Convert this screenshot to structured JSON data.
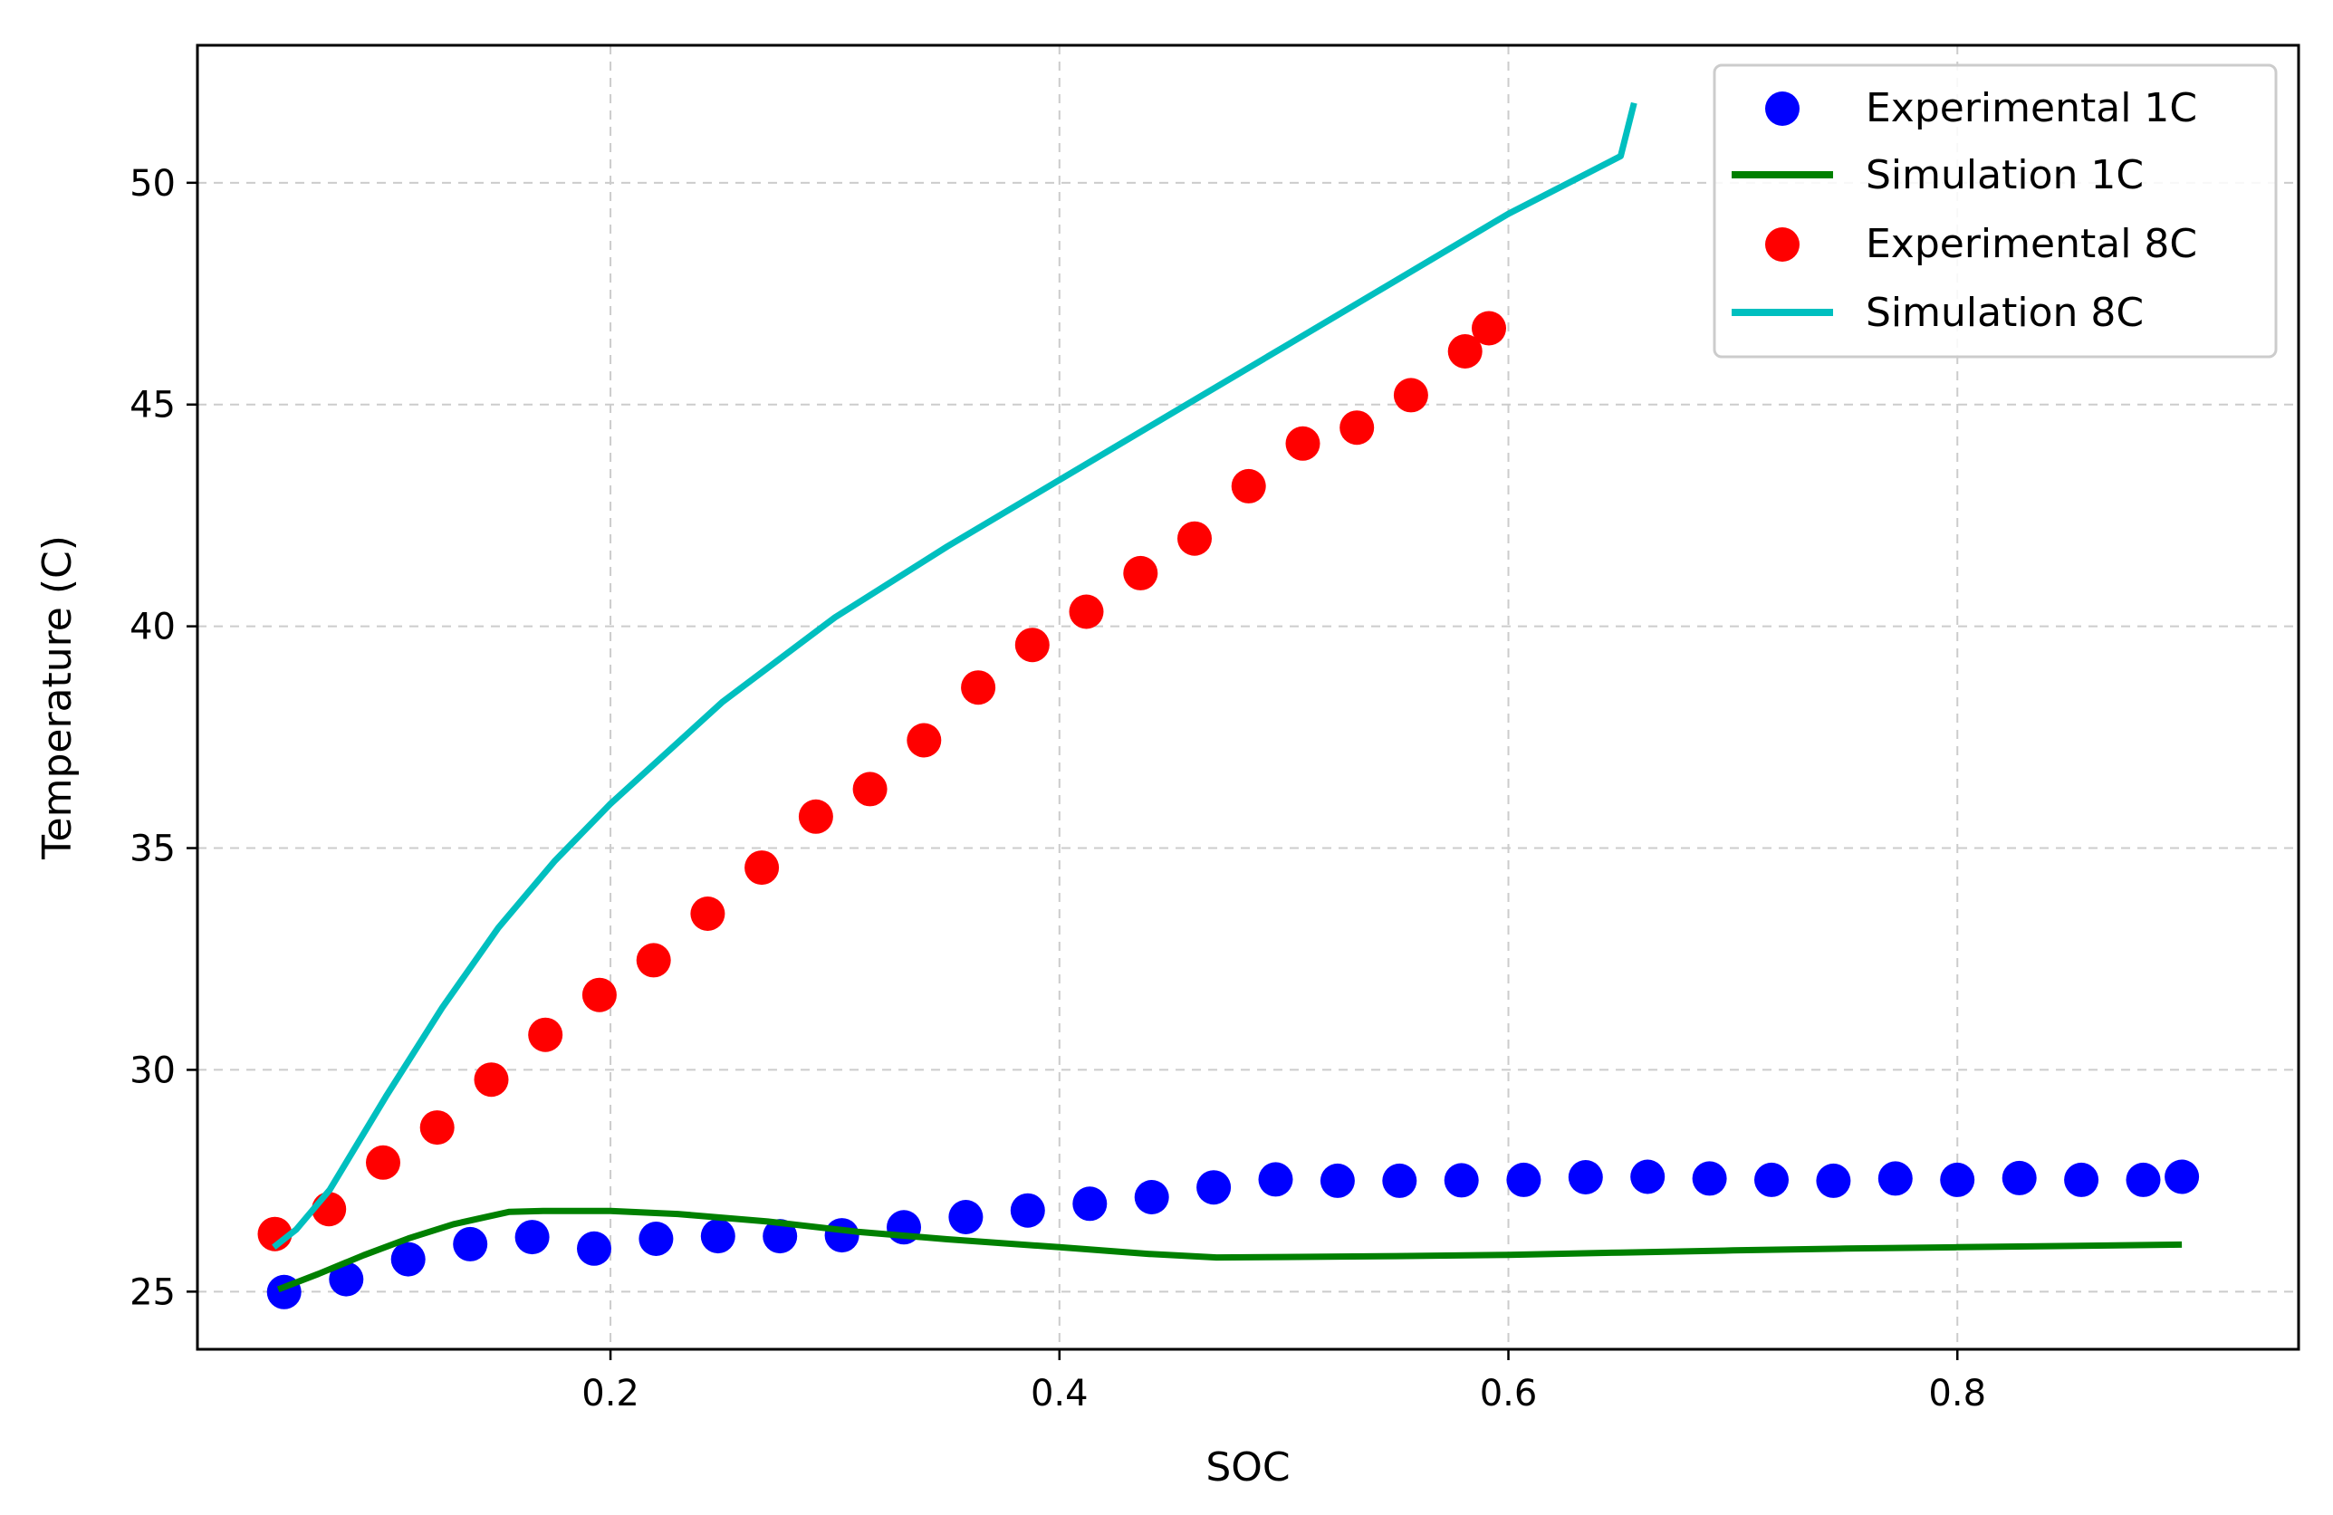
{
  "chart_data": {
    "type": "scatter",
    "title": "",
    "xlabel": "SOC",
    "ylabel": "Temperature (C)",
    "xlim": [
      0.016,
      0.952
    ],
    "ylim": [
      23.7,
      53.1
    ],
    "xticks": [
      0.2,
      0.4,
      0.6,
      0.8
    ],
    "xtick_labels": [
      "0.2",
      "0.4",
      "0.6",
      "0.8"
    ],
    "yticks": [
      25,
      30,
      35,
      40,
      45,
      50
    ],
    "ytick_labels": [
      "25",
      "30",
      "35",
      "40",
      "45",
      "50"
    ],
    "grid": true,
    "legend_position": "top-right",
    "series": [
      {
        "name": "Experimental 1C",
        "kind": "scatter",
        "color": "#0000ff",
        "x": [
          0.0546,
          0.0823,
          0.1099,
          0.1375,
          0.1651,
          0.1927,
          0.2203,
          0.2479,
          0.2755,
          0.3031,
          0.3307,
          0.3583,
          0.3859,
          0.4135,
          0.4411,
          0.4687,
          0.4963,
          0.5239,
          0.5515,
          0.5791,
          0.6068,
          0.6344,
          0.662,
          0.6896,
          0.7172,
          0.7448,
          0.7724,
          0.8,
          0.8276,
          0.8552,
          0.8828,
          0.9
        ],
        "y": [
          24.99,
          25.28,
          25.73,
          26.07,
          26.23,
          25.97,
          26.19,
          26.25,
          26.25,
          26.27,
          26.45,
          26.68,
          26.83,
          26.98,
          27.13,
          27.35,
          27.53,
          27.5,
          27.5,
          27.51,
          27.52,
          27.58,
          27.59,
          27.55,
          27.52,
          27.5,
          27.55,
          27.52,
          27.56,
          27.52,
          27.52,
          27.59
        ]
      },
      {
        "name": "Simulation 1C",
        "kind": "line",
        "color": "#008000",
        "x": [
          0.052,
          0.07,
          0.09,
          0.11,
          0.13,
          0.155,
          0.17,
          0.2,
          0.23,
          0.27,
          0.31,
          0.35,
          0.4,
          0.44,
          0.47,
          0.5,
          0.55,
          0.6,
          0.65,
          0.7,
          0.75,
          0.8,
          0.85,
          0.9
        ],
        "y": [
          25.05,
          25.4,
          25.82,
          26.2,
          26.52,
          26.8,
          26.82,
          26.82,
          26.75,
          26.58,
          26.35,
          26.18,
          26.0,
          25.85,
          25.77,
          25.78,
          25.8,
          25.83,
          25.88,
          25.93,
          25.97,
          26.0,
          26.03,
          26.06
        ]
      },
      {
        "name": "Experimental 8C",
        "kind": "scatter",
        "color": "#ff0000",
        "x": [
          0.0505,
          0.0746,
          0.0987,
          0.1228,
          0.1469,
          0.171,
          0.1951,
          0.2192,
          0.2433,
          0.2674,
          0.2915,
          0.3156,
          0.3397,
          0.3638,
          0.3879,
          0.412,
          0.4361,
          0.4602,
          0.4843,
          0.5084,
          0.5325,
          0.5566,
          0.5807,
          0.5913
        ],
        "y": [
          26.3,
          26.86,
          27.91,
          28.7,
          29.78,
          30.79,
          31.69,
          32.47,
          33.52,
          34.56,
          35.71,
          36.33,
          37.43,
          38.62,
          39.58,
          40.33,
          41.2,
          41.98,
          43.16,
          44.12,
          44.48,
          45.21,
          46.2,
          46.72
        ]
      },
      {
        "name": "Simulation 8C",
        "kind": "line",
        "color": "#00bfbf",
        "x": [
          0.05,
          0.06,
          0.075,
          0.1,
          0.125,
          0.15,
          0.175,
          0.2,
          0.25,
          0.3,
          0.35,
          0.4,
          0.45,
          0.5,
          0.55,
          0.6,
          0.65,
          0.656
        ],
        "y": [
          26.0,
          26.4,
          27.3,
          29.4,
          31.4,
          33.2,
          34.7,
          36.0,
          38.3,
          40.2,
          41.8,
          43.3,
          44.8,
          46.3,
          47.8,
          49.3,
          50.6,
          51.8
        ]
      }
    ]
  }
}
